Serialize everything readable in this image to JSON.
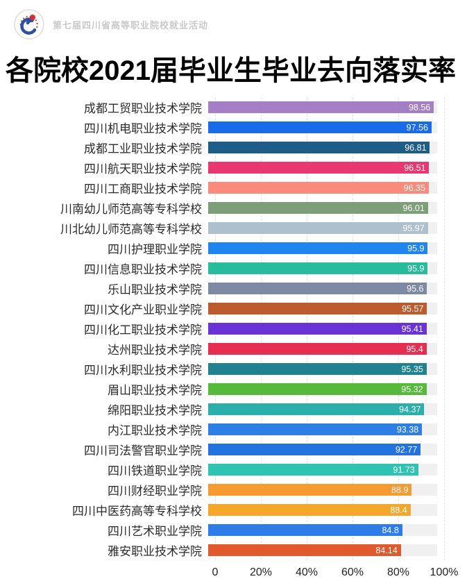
{
  "header": {
    "event_label": "第七届四川省高等职业院校就业活动"
  },
  "chart_data": {
    "type": "bar",
    "orientation": "horizontal",
    "title": "各院校2021届毕业生毕业去向落实率",
    "xlabel": "",
    "ylabel": "",
    "xlim": [
      0,
      100
    ],
    "grid": "dashed-vertical",
    "x_ticks": [
      "0",
      "20%",
      "40%",
      "60%",
      "80%",
      "100%"
    ],
    "tick_positions": [
      0,
      20,
      40,
      60,
      80,
      100
    ],
    "track_color": "#f0f0f0",
    "categories": [
      "成都工贸职业技术学院",
      "四川机电职业技术学院",
      "成都工业职业技术学院",
      "四川航天职业技术学院",
      "四川工商职业技术学院",
      "川南幼儿师范高等专科学校",
      "川北幼儿师范高等专科学校",
      "四川护理职业学院",
      "四川信息职业技术学院",
      "乐山职业技术学院",
      "四川文化产业职业学院",
      "四川化工职业技术学院",
      "达州职业技术学院",
      "四川水利职业技术学院",
      "眉山职业技术学院",
      "绵阳职业技术学院",
      "内江职业技术学院",
      "四川司法警官职业学院",
      "四川铁道职业学院",
      "四川财经职业学院",
      "四川中医药高等专科学校",
      "四川艺术职业学院",
      "雅安职业技术学院"
    ],
    "values": [
      98.56,
      97.56,
      96.81,
      96.51,
      96.35,
      96.01,
      95.97,
      95.9,
      95.9,
      95.6,
      95.57,
      95.41,
      95.4,
      95.35,
      95.32,
      94.37,
      93.38,
      92.77,
      91.73,
      88.9,
      88.4,
      84.8,
      84.14
    ],
    "colors": [
      "#a57fc5",
      "#1a6be8",
      "#1e5d87",
      "#e8386f",
      "#f98b7c",
      "#7d9e78",
      "#aec0ce",
      "#1f86f0",
      "#27bd9c",
      "#7e89a3",
      "#bd5b2e",
      "#6a33d6",
      "#e52e50",
      "#20818f",
      "#55b93a",
      "#2aafab",
      "#2e7ee8",
      "#2273e0",
      "#2ec4b4",
      "#f79a31",
      "#f5a62b",
      "#2d7ce8",
      "#e05a2e"
    ]
  }
}
